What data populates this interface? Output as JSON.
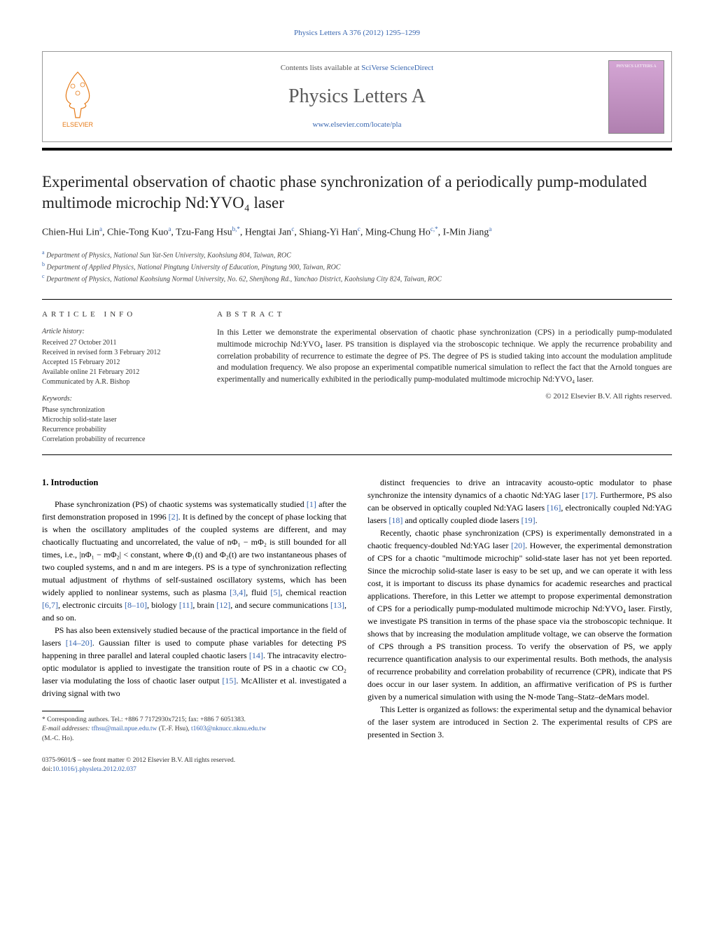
{
  "top_link": "Physics Letters A 376 (2012) 1295–1299",
  "header": {
    "contents_prefix": "Contents lists available at ",
    "contents_link": "SciVerse ScienceDirect",
    "journal_name": "Physics Letters A",
    "journal_url": "www.elsevier.com/locate/pla",
    "publisher_label": "ELSEVIER",
    "cover_label": "PHYSICS LETTERS A"
  },
  "title": "Experimental observation of chaotic phase synchronization of a periodically pump-modulated multimode microchip Nd:YVO₄ laser",
  "authors_html": "Chien-Hui Lin<sup>a</sup>, Chie-Tong Kuo<sup>a</sup>, Tzu-Fang Hsu<sup>b,*</sup>, Hengtai Jan<sup>c</sup>, Shiang-Yi Han<sup>c</sup>, Ming-Chung Ho<sup>c,*</sup>, I-Min Jiang<sup>a</sup>",
  "affiliations": [
    {
      "sup": "a",
      "text": "Department of Physics, National Sun Yat-Sen University, Kaohsiung 804, Taiwan, ROC"
    },
    {
      "sup": "b",
      "text": "Department of Applied Physics, National Pingtung University of Education, Pingtung 900, Taiwan, ROC"
    },
    {
      "sup": "c",
      "text": "Department of Physics, National Kaohsiung Normal University, No. 62, Shenjhong Rd., Yanchao District, Kaohsiung City 824, Taiwan, ROC"
    }
  ],
  "article_info": {
    "heading": "ARTICLE INFO",
    "history_label": "Article history:",
    "history": "Received 27 October 2011\nReceived in revised form 3 February 2012\nAccepted 15 February 2012\nAvailable online 21 February 2012\nCommunicated by A.R. Bishop",
    "keywords_label": "Keywords:",
    "keywords": "Phase synchronization\nMicrochip solid-state laser\nRecurrence probability\nCorrelation probability of recurrence"
  },
  "abstract": {
    "heading": "ABSTRACT",
    "text": "In this Letter we demonstrate the experimental observation of chaotic phase synchronization (CPS) in a periodically pump-modulated multimode microchip Nd:YVO₄ laser. PS transition is displayed via the stroboscopic technique. We apply the recurrence probability and correlation probability of recurrence to estimate the degree of PS. The degree of PS is studied taking into account the modulation amplitude and modulation frequency. We also propose an experimental compatible numerical simulation to reflect the fact that the Arnold tongues are experimentally and numerically exhibited in the periodically pump-modulated multimode microchip Nd:YVO₄ laser.",
    "copyright": "© 2012 Elsevier B.V. All rights reserved."
  },
  "section1_heading": "1. Introduction",
  "col_left": [
    "Phase synchronization (PS) of chaotic systems was systematically studied [1] after the first demonstration proposed in 1996 [2]. It is defined by the concept of phase locking that is when the oscillatory amplitudes of the coupled systems are different, and may chaotically fluctuating and uncorrelated, the value of nΦ₁ − mΦ₂ is still bounded for all times, i.e., |nΦ₁ − mΦ₂| < constant, where Φ₁(t) and Φ₂(t) are two instantaneous phases of two coupled systems, and n and m are integers. PS is a type of synchronization reflecting mutual adjustment of rhythms of self-sustained oscillatory systems, which has been widely applied to nonlinear systems, such as plasma [3,4], fluid [5], chemical reaction [6,7], electronic circuits [8–10], biology [11], brain [12], and secure communications [13], and so on.",
    "PS has also been extensively studied because of the practical importance in the field of lasers [14–20]. Gaussian filter is used to compute phase variables for detecting PS happening in three parallel and lateral coupled chaotic lasers [14]. The intracavity electro-optic modulator is applied to investigate the transition route of PS in a chaotic cw CO₂ laser via modulating the loss of chaotic laser output [15]. McAllister et al. investigated a driving signal with two"
  ],
  "col_right": [
    "distinct frequencies to drive an intracavity acousto-optic modulator to phase synchronize the intensity dynamics of a chaotic Nd:YAG laser [17]. Furthermore, PS also can be observed in optically coupled Nd:YAG lasers [16], electronically coupled Nd:YAG lasers [18] and optically coupled diode lasers [19].",
    "Recently, chaotic phase synchronization (CPS) is experimentally demonstrated in a chaotic frequency-doubled Nd:YAG laser [20]. However, the experimental demonstration of CPS for a chaotic \"multimode microchip\" solid-state laser has not yet been reported. Since the microchip solid-state laser is easy to be set up, and we can operate it with less cost, it is important to discuss its phase dynamics for academic researches and practical applications. Therefore, in this Letter we attempt to propose experimental demonstration of CPS for a periodically pump-modulated multimode microchip Nd:YVO₄ laser. Firstly, we investigate PS transition in terms of the phase space via the stroboscopic technique. It shows that by increasing the modulation amplitude voltage, we can observe the formation of CPS through a PS transition process. To verify the observation of PS, we apply recurrence quantification analysis to our experimental results. Both methods, the analysis of recurrence probability and correlation probability of recurrence (CPR), indicate that PS does occur in our laser system. In addition, an affirmative verification of PS is further given by a numerical simulation with using the N-mode Tang–Statz–deMars model.",
    "This Letter is organized as follows: the experimental setup and the dynamical behavior of the laser system are introduced in Section 2. The experimental results of CPS are presented in Section 3."
  ],
  "footnotes": {
    "corr": "* Corresponding authors. Tel.: +886 7 7172930x7215; fax: +886 7 6051383.",
    "email_label": "E-mail addresses:",
    "email1": "tfhsu@mail.npue.edu.tw",
    "email1_who": "(T.-F. Hsu),",
    "email2": "t1603@nknucc.nknu.edu.tw",
    "email2_who": "(M.-C. Ho)."
  },
  "bottom": {
    "line1": "0375-9601/$ – see front matter © 2012 Elsevier B.V. All rights reserved.",
    "doi_label": "doi:",
    "doi": "10.1016/j.physleta.2012.02.037"
  },
  "colors": {
    "link": "#3866b0",
    "text": "#222222",
    "muted": "#555555",
    "cover_top": "#d4a5d4",
    "cover_bottom": "#b080b0"
  }
}
